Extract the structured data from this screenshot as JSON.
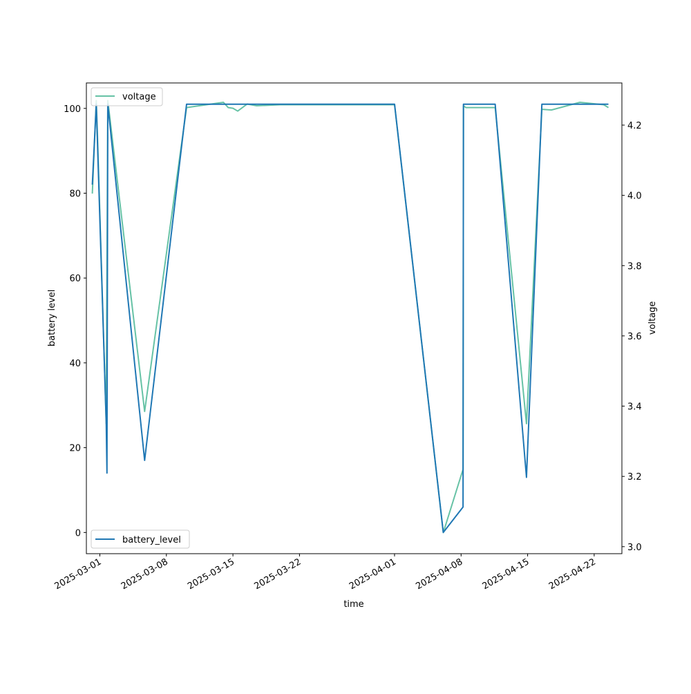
{
  "chart_data": {
    "type": "line",
    "title": "",
    "xlabel": "time",
    "ylabel_left": "battery level",
    "ylabel_right": "voltage",
    "xlim": [
      "2025-02-27T14:00",
      "2025-04-24T22:00"
    ],
    "ylim_left": [
      -5,
      106
    ],
    "ylim_right": [
      2.98,
      4.32
    ],
    "x_ticks": [
      "2025-03-01",
      "2025-03-08",
      "2025-03-15",
      "2025-03-22",
      "2025-04-01",
      "2025-04-08",
      "2025-04-15",
      "2025-04-22"
    ],
    "y_ticks_left": [
      0,
      20,
      40,
      60,
      80,
      100
    ],
    "y_ticks_right": [
      3.0,
      3.2,
      3.4,
      3.6,
      3.8,
      4.0,
      4.2
    ],
    "grid": false,
    "legends": [
      {
        "position": "upper left",
        "entries": [
          "voltage"
        ]
      },
      {
        "position": "lower left",
        "entries": [
          "battery_level"
        ]
      }
    ],
    "series": [
      {
        "name": "battery_level",
        "axis": "left",
        "color": "#1f77b4",
        "points": [
          [
            "2025-02-28T05:00",
            82
          ],
          [
            "2025-02-28T15:00",
            101
          ],
          [
            "2025-03-01T16:00",
            26
          ],
          [
            "2025-03-01T18:00",
            14
          ],
          [
            "2025-03-01T20:00",
            101
          ],
          [
            "2025-03-05T17:00",
            17
          ],
          [
            "2025-03-10T03:00",
            101
          ],
          [
            "2025-03-14T00:00",
            101
          ],
          [
            "2025-03-20T00:00",
            101
          ],
          [
            "2025-04-01T00:00",
            101
          ],
          [
            "2025-04-06T03:00",
            0
          ],
          [
            "2025-04-08T05:00",
            6
          ],
          [
            "2025-04-08T06:00",
            101
          ],
          [
            "2025-04-11T14:00",
            101
          ],
          [
            "2025-04-14T21:00",
            13
          ],
          [
            "2025-04-16T12:00",
            101
          ],
          [
            "2025-04-23T12:00",
            101
          ]
        ]
      },
      {
        "name": "voltage",
        "axis": "right",
        "color": "#66c2a5",
        "points": [
          [
            "2025-02-28T05:00",
            4.005
          ],
          [
            "2025-02-28T15:00",
            4.27
          ],
          [
            "2025-02-28T18:00",
            4.17
          ],
          [
            "2025-03-01T16:00",
            3.35
          ],
          [
            "2025-03-01T20:00",
            4.27
          ],
          [
            "2025-03-05T17:00",
            3.385
          ],
          [
            "2025-03-10T03:00",
            4.25
          ],
          [
            "2025-03-14T00:00",
            4.265
          ],
          [
            "2025-03-14T12:00",
            4.25
          ],
          [
            "2025-03-15T00:00",
            4.248
          ],
          [
            "2025-03-15T12:00",
            4.24
          ],
          [
            "2025-03-16T12:00",
            4.26
          ],
          [
            "2025-03-17T12:00",
            4.255
          ],
          [
            "2025-03-20T00:00",
            4.258
          ],
          [
            "2025-04-01T00:00",
            4.258
          ],
          [
            "2025-04-06T03:00",
            3.04
          ],
          [
            "2025-04-08T05:00",
            3.22
          ],
          [
            "2025-04-08T06:00",
            4.255
          ],
          [
            "2025-04-08T12:00",
            4.25
          ],
          [
            "2025-04-11T14:00",
            4.25
          ],
          [
            "2025-04-14T21:00",
            3.35
          ],
          [
            "2025-04-16T12:00",
            4.245
          ],
          [
            "2025-04-17T12:00",
            4.243
          ],
          [
            "2025-04-20T12:00",
            4.265
          ],
          [
            "2025-04-23T00:00",
            4.258
          ],
          [
            "2025-04-23T12:00",
            4.25
          ]
        ]
      }
    ]
  }
}
